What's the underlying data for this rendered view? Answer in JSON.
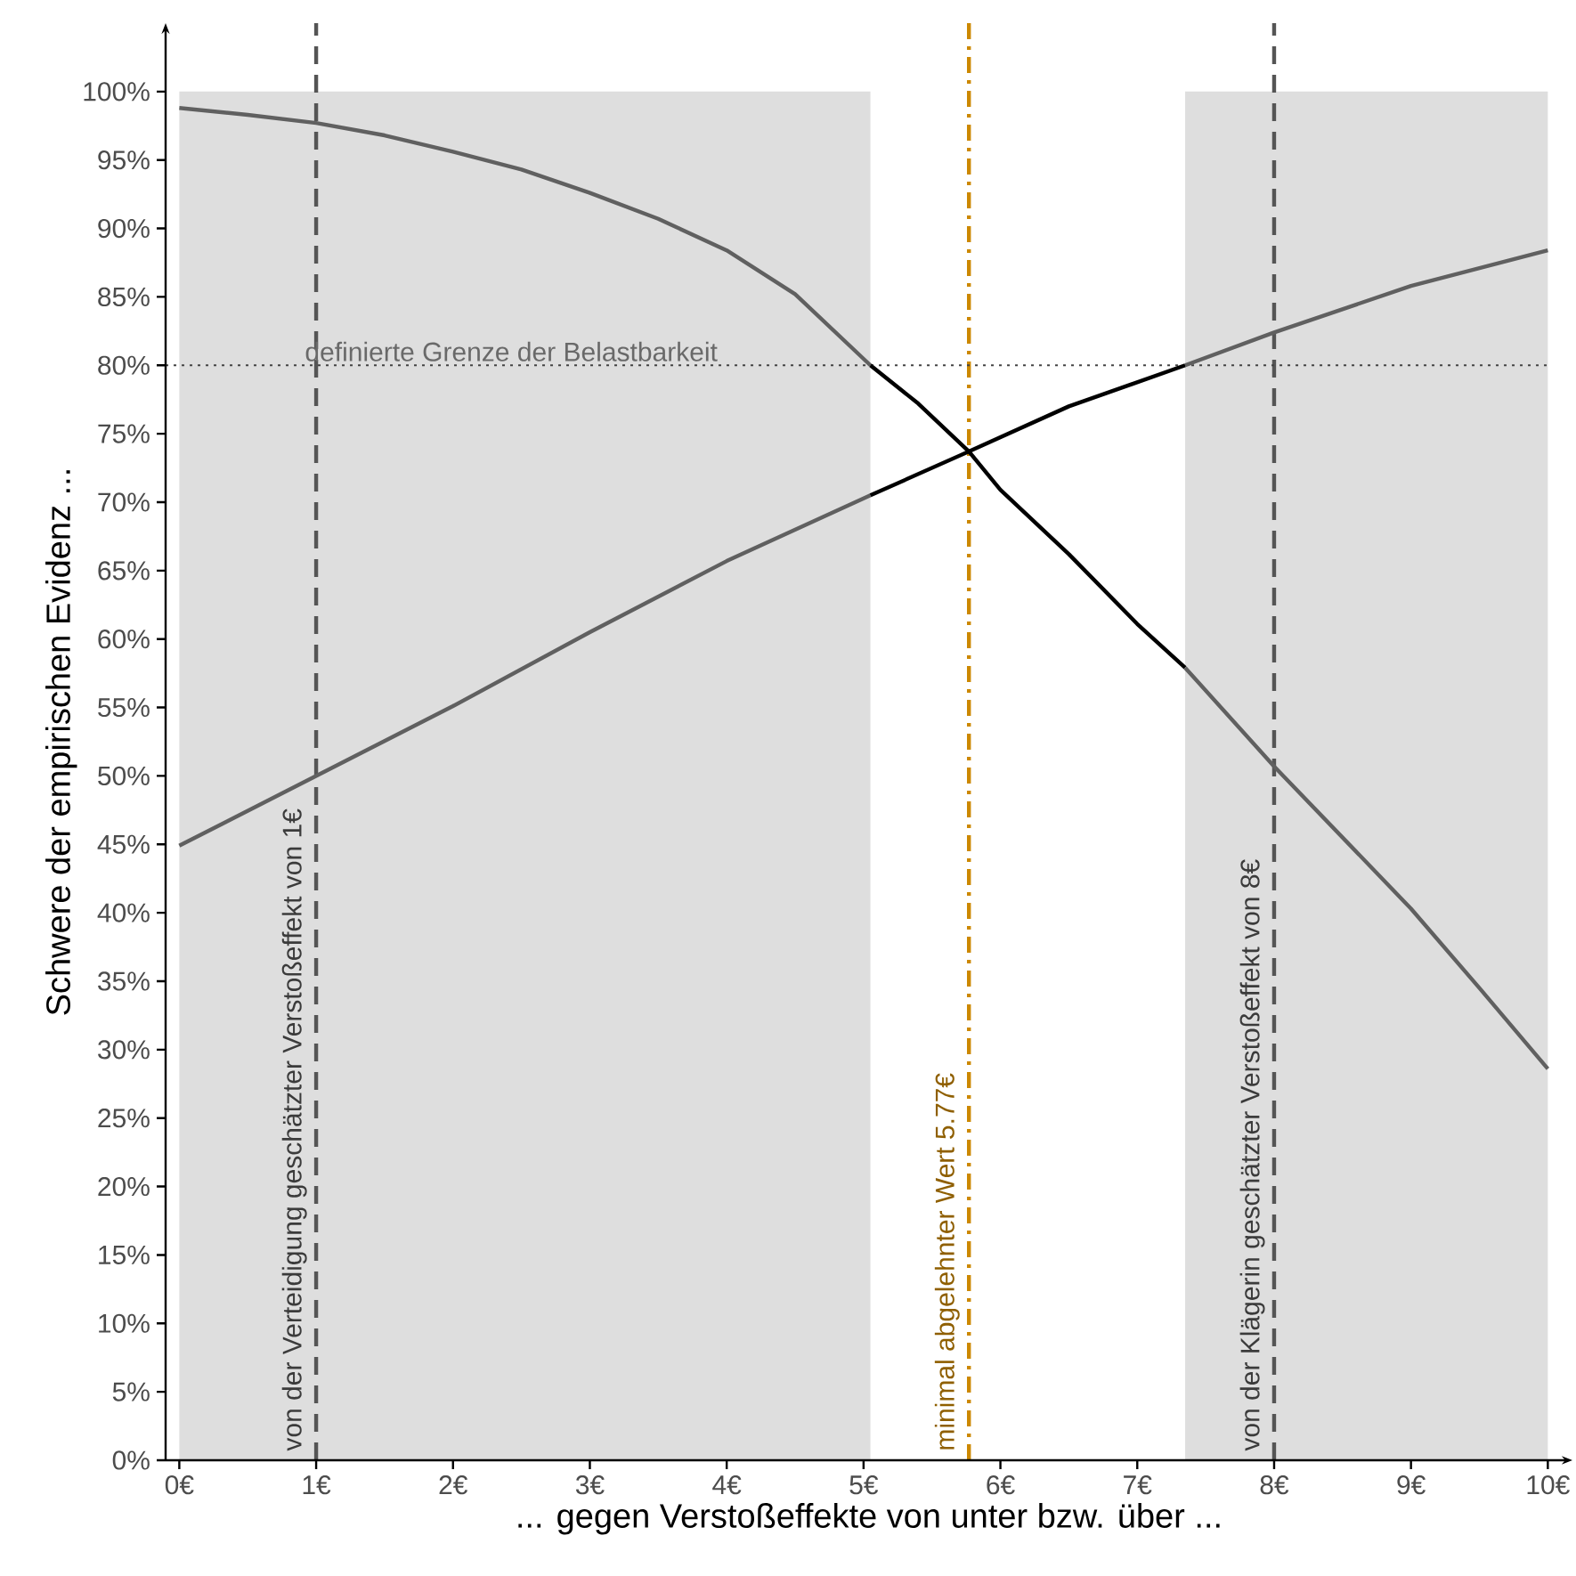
{
  "chart_data": {
    "type": "line",
    "xlabel": "... gegen Verstoßeffekte von unter bzw. über ...",
    "ylabel": "Schwere der empirischen Evidenz ...",
    "xlim": [
      -0.1,
      10.18
    ],
    "ylim": [
      0,
      105
    ],
    "xticks": [
      {
        "value": 0,
        "label": "0€"
      },
      {
        "value": 1,
        "label": "1€"
      },
      {
        "value": 2,
        "label": "2€"
      },
      {
        "value": 3,
        "label": "3€"
      },
      {
        "value": 4,
        "label": "4€"
      },
      {
        "value": 5,
        "label": "5€"
      },
      {
        "value": 6,
        "label": "6€"
      },
      {
        "value": 7,
        "label": "7€"
      },
      {
        "value": 8,
        "label": "8€"
      },
      {
        "value": 9,
        "label": "9€"
      },
      {
        "value": 10,
        "label": "10€"
      }
    ],
    "yticks": [
      {
        "value": 0,
        "label": "0%"
      },
      {
        "value": 5,
        "label": "5%"
      },
      {
        "value": 10,
        "label": "10%"
      },
      {
        "value": 15,
        "label": "15%"
      },
      {
        "value": 20,
        "label": "20%"
      },
      {
        "value": 25,
        "label": "25%"
      },
      {
        "value": 30,
        "label": "30%"
      },
      {
        "value": 35,
        "label": "35%"
      },
      {
        "value": 40,
        "label": "40%"
      },
      {
        "value": 45,
        "label": "45%"
      },
      {
        "value": 50,
        "label": "50%"
      },
      {
        "value": 55,
        "label": "55%"
      },
      {
        "value": 60,
        "label": "60%"
      },
      {
        "value": 65,
        "label": "65%"
      },
      {
        "value": 70,
        "label": "70%"
      },
      {
        "value": 75,
        "label": "75%"
      },
      {
        "value": 80,
        "label": "80%"
      },
      {
        "value": 85,
        "label": "85%"
      },
      {
        "value": 90,
        "label": "90%"
      },
      {
        "value": 95,
        "label": "95%"
      },
      {
        "value": 100,
        "label": "100%"
      }
    ],
    "bands": [
      {
        "axis": "x",
        "from": 0,
        "to": 5.05,
        "color": "#dedede"
      },
      {
        "axis": "x",
        "from": 7.35,
        "to": 10,
        "color": "#dedede"
      }
    ],
    "series": [
      {
        "color": "#606060",
        "x": [
          0,
          0.5,
          1,
          1.5,
          2,
          2.5,
          3,
          3.5,
          4,
          4.5,
          5.05
        ],
        "values": [
          98.8,
          98.3,
          97.7,
          96.8,
          95.6,
          94.3,
          92.6,
          90.7,
          88.4,
          85.2,
          80
        ]
      },
      {
        "color": "#000000",
        "x": [
          5.05,
          5.4,
          5.77,
          6,
          6.5,
          7,
          7.35
        ],
        "values": [
          80,
          77.2,
          73.7,
          70.9,
          66.2,
          61.1,
          57.9
        ]
      },
      {
        "color": "#606060",
        "x": [
          7.35,
          8,
          8.5,
          9,
          9.5,
          10
        ],
        "values": [
          57.9,
          50.7,
          45.5,
          40.3,
          34.5,
          28.6
        ]
      },
      {
        "color": "#606060",
        "x": [
          0,
          1,
          2,
          3,
          4,
          5.05
        ],
        "values": [
          44.9,
          50,
          55.1,
          60.5,
          65.7,
          70.5
        ]
      },
      {
        "color": "#000000",
        "x": [
          5.05,
          5.77,
          6.5,
          7.35
        ],
        "values": [
          70.5,
          73.7,
          77,
          80
        ]
      },
      {
        "color": "#606060",
        "x": [
          7.35,
          8,
          9,
          10
        ],
        "values": [
          80,
          82.4,
          85.8,
          88.4
        ]
      }
    ],
    "ref_lines": [
      {
        "axis": "x",
        "value": 1,
        "label": "von der Verteidigung geschätzter Verstoßeffekt von 1€",
        "color": "#555555",
        "line_style": "dashed"
      },
      {
        "axis": "x",
        "value": 8,
        "label": "von der Klägerin geschätzter Verstoßeffekt von 8€",
        "color": "#555555",
        "line_style": "dashed"
      },
      {
        "axis": "x",
        "value": 5.77,
        "label": "minimal abgelehnter Wert 5.77€",
        "color": "#cc8800",
        "line_style": "dashdot"
      },
      {
        "axis": "y",
        "value": 80,
        "label": "definierte Grenze der Belastbarkeit",
        "color": "#444444",
        "line_style": "dotted"
      }
    ]
  }
}
